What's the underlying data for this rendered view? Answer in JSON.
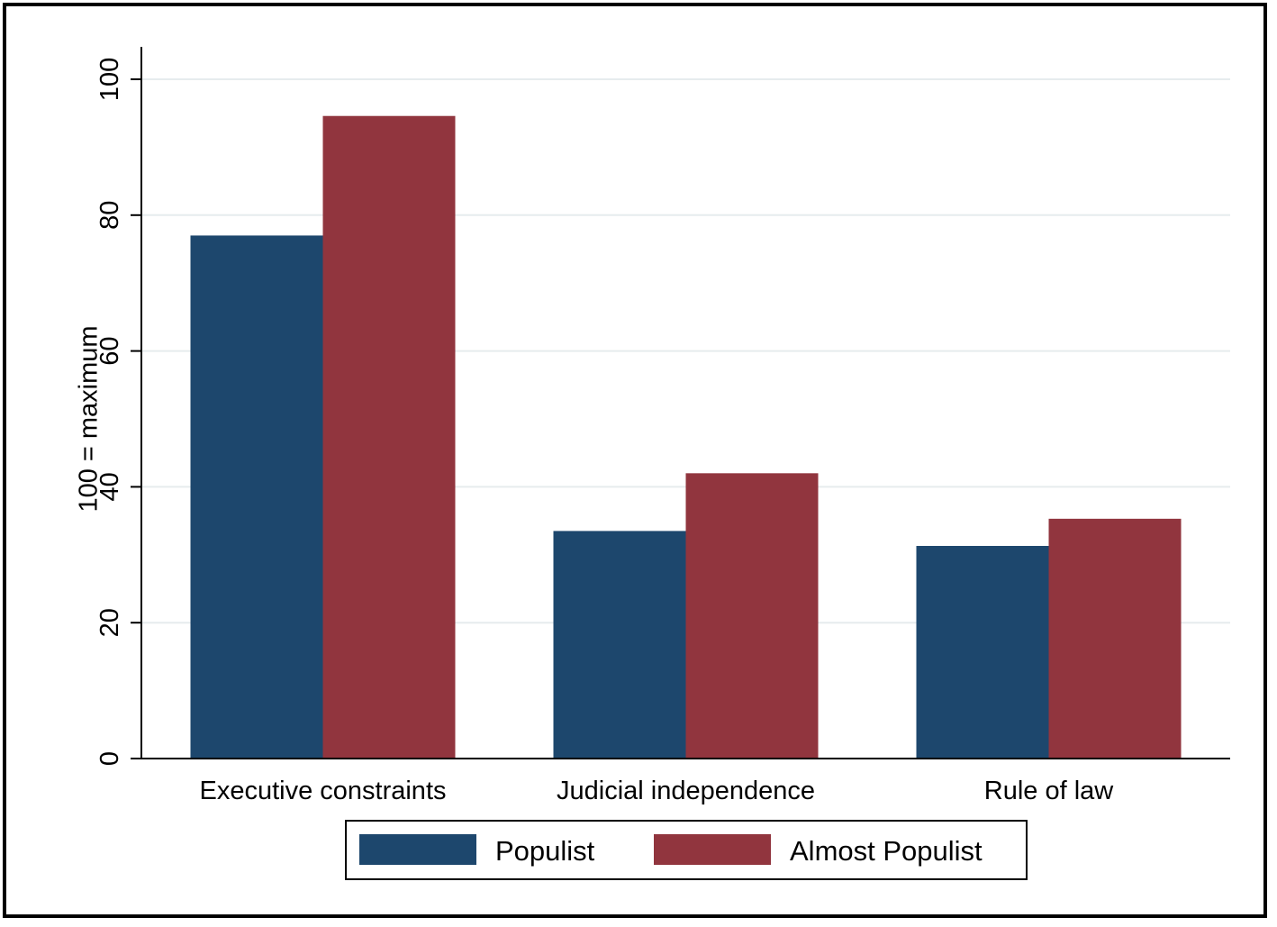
{
  "chart_data": {
    "type": "bar",
    "title": "",
    "xlabel": "",
    "ylabel": "100 = maximum",
    "ylim": [
      0,
      100
    ],
    "yticks": [
      0,
      20,
      40,
      60,
      80,
      100
    ],
    "grid": true,
    "legend_position": "bottom",
    "categories": [
      "Executive constraints",
      "Judicial independence",
      "Rule of law"
    ],
    "series": [
      {
        "name": "Populist",
        "color": "#1d476d",
        "values": [
          77,
          33.5,
          31.3
        ]
      },
      {
        "name": "Almost Populist",
        "color": "#91353e",
        "values": [
          94.6,
          42,
          35.3
        ]
      }
    ]
  }
}
